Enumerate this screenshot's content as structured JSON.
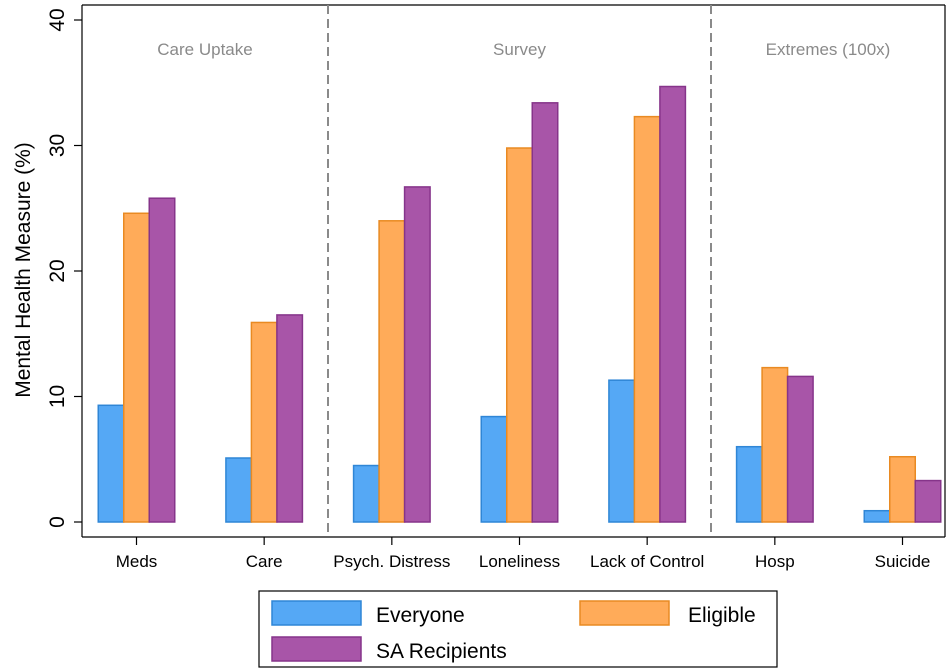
{
  "chart_data": {
    "type": "bar",
    "ylabel": "Mental Health Measure (%)",
    "ylim": [
      0,
      40
    ],
    "yticks": [
      0,
      10,
      20,
      30,
      40
    ],
    "grid": false,
    "legend_position": "bottom",
    "categories": [
      "Meds",
      "Care",
      "Psych. Distress",
      "Loneliness",
      "Lack of Control",
      "Hosp",
      "Suicide"
    ],
    "groups": [
      {
        "label": "Care Uptake",
        "categories": [
          "Meds",
          "Care"
        ]
      },
      {
        "label": "Survey",
        "categories": [
          "Psych. Distress",
          "Loneliness",
          "Lack of Control"
        ]
      },
      {
        "label": "Extremes (100x)",
        "categories": [
          "Hosp",
          "Suicide"
        ]
      }
    ],
    "series": [
      {
        "name": "Everyone",
        "color": "#55a8f5",
        "edge": "#2f86d6",
        "values": [
          9.3,
          5.1,
          4.5,
          8.4,
          11.3,
          6.0,
          0.9
        ]
      },
      {
        "name": "Eligible",
        "color": "#ffab59",
        "edge": "#e98a22",
        "values": [
          24.6,
          15.9,
          24.0,
          29.8,
          32.3,
          12.3,
          5.2
        ]
      },
      {
        "name": "SA Recipients",
        "color": "#a855a8",
        "edge": "#86348a",
        "values": [
          25.8,
          16.5,
          26.7,
          33.4,
          34.7,
          11.6,
          3.3
        ]
      }
    ]
  }
}
